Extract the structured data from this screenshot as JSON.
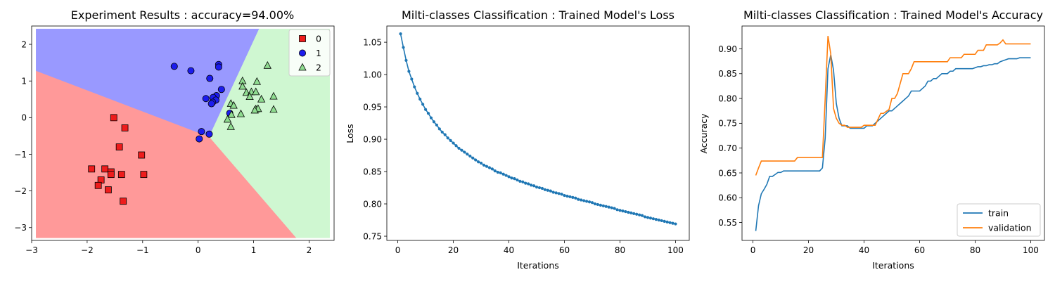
{
  "chart_data": [
    {
      "type": "scatter",
      "title": "Experiment Results : accuracy=94.00%",
      "xlabel": "",
      "ylabel": "",
      "xlim": [
        -3,
        2.45
      ],
      "ylim": [
        -3.35,
        2.5
      ],
      "x_ticks": [
        "−3",
        "−2",
        "−1",
        "0",
        "1",
        "2"
      ],
      "x_tick_values": [
        -3,
        -2,
        -1,
        0,
        1,
        2
      ],
      "y_ticks": [
        "−3",
        "−2",
        "−1",
        "0",
        "1",
        "2"
      ],
      "y_tick_values": [
        -3,
        -2,
        -1,
        0,
        1,
        2
      ],
      "legend_position": "top-right",
      "grid": false,
      "regions": [
        {
          "class": "0",
          "color": "#ff9999",
          "polygon": [
            [
              -2.92,
              -3.28
            ],
            [
              -2.92,
              1.28
            ],
            [
              0.2,
              -0.52
            ],
            [
              1.77,
              -3.28
            ]
          ]
        },
        {
          "class": "1",
          "color": "#9999ff",
          "polygon": [
            [
              -2.92,
              2.42
            ],
            [
              1.1,
              2.42
            ],
            [
              0.2,
              -0.52
            ],
            [
              -2.92,
              1.28
            ]
          ]
        },
        {
          "class": "2",
          "color": "#cff7d1",
          "polygon": [
            [
              1.1,
              2.42
            ],
            [
              2.37,
              2.42
            ],
            [
              2.37,
              -3.28
            ],
            [
              1.77,
              -3.28
            ],
            [
              0.2,
              -0.52
            ]
          ]
        }
      ],
      "series": [
        {
          "name": "0",
          "marker": "square",
          "color": "#ee1c1c",
          "points": [
            [
              -1.52,
              0.0
            ],
            [
              -1.32,
              -0.28
            ],
            [
              -1.42,
              -0.8
            ],
            [
              -1.02,
              -1.02
            ],
            [
              -1.92,
              -1.4
            ],
            [
              -1.68,
              -1.4
            ],
            [
              -1.57,
              -1.48
            ],
            [
              -1.57,
              -1.55
            ],
            [
              -1.38,
              -1.55
            ],
            [
              -0.98,
              -1.55
            ],
            [
              -1.75,
              -1.7
            ],
            [
              -1.8,
              -1.85
            ],
            [
              -1.62,
              -1.97
            ],
            [
              -1.35,
              -2.28
            ]
          ]
        },
        {
          "name": "1",
          "marker": "circle",
          "color": "#1c1cee",
          "points": [
            [
              -0.43,
              1.4
            ],
            [
              -0.13,
              1.28
            ],
            [
              0.37,
              1.45
            ],
            [
              0.37,
              1.38
            ],
            [
              0.21,
              1.07
            ],
            [
              0.42,
              0.77
            ],
            [
              0.33,
              0.6
            ],
            [
              0.27,
              0.55
            ],
            [
              0.14,
              0.52
            ],
            [
              0.32,
              0.48
            ],
            [
              0.26,
              0.42
            ],
            [
              0.24,
              0.38
            ],
            [
              0.57,
              0.12
            ],
            [
              0.06,
              -0.38
            ],
            [
              0.2,
              -0.45
            ],
            [
              0.02,
              -0.58
            ]
          ]
        },
        {
          "name": "2",
          "marker": "triangle",
          "color": "#8fdc90",
          "points": [
            [
              1.25,
              1.42
            ],
            [
              0.8,
              1.0
            ],
            [
              1.06,
              0.98
            ],
            [
              0.8,
              0.85
            ],
            [
              0.87,
              0.68
            ],
            [
              0.96,
              0.7
            ],
            [
              1.04,
              0.7
            ],
            [
              0.93,
              0.57
            ],
            [
              1.36,
              0.58
            ],
            [
              1.14,
              0.5
            ],
            [
              0.59,
              0.38
            ],
            [
              0.64,
              0.33
            ],
            [
              1.04,
              0.23
            ],
            [
              1.08,
              0.24
            ],
            [
              1.02,
              0.2
            ],
            [
              1.36,
              0.22
            ],
            [
              0.77,
              0.1
            ],
            [
              0.6,
              0.08
            ],
            [
              0.53,
              -0.05
            ],
            [
              0.59,
              -0.25
            ]
          ]
        }
      ]
    },
    {
      "type": "line",
      "title": "Milti-classes Classification : Trained Model's Loss",
      "xlabel": "Iterations",
      "ylabel": "Loss",
      "xlim": [
        -3.95,
        104.95
      ],
      "ylim": [
        0.7435,
        1.0751
      ],
      "x_ticks": [
        "0",
        "20",
        "40",
        "60",
        "80",
        "100"
      ],
      "x_tick_values": [
        0,
        20,
        40,
        60,
        80,
        100
      ],
      "y_ticks": [
        "0.75",
        "0.80",
        "0.85",
        "0.90",
        "0.95",
        "1.00",
        "1.05"
      ],
      "y_tick_values": [
        0.75,
        0.8,
        0.85,
        0.9,
        0.95,
        1.0,
        1.05
      ],
      "grid": false,
      "series": [
        {
          "color": "#1f77b4",
          "marker": "circle",
          "x": [
            1,
            2,
            3,
            4,
            5,
            6,
            7,
            8,
            9,
            10,
            11,
            12,
            13,
            14,
            15,
            16,
            17,
            18,
            19,
            20,
            21,
            22,
            23,
            24,
            25,
            26,
            27,
            28,
            29,
            30,
            31,
            32,
            33,
            34,
            35,
            36,
            37,
            38,
            39,
            40,
            41,
            42,
            43,
            44,
            45,
            46,
            47,
            48,
            49,
            50,
            51,
            52,
            53,
            54,
            55,
            56,
            57,
            58,
            59,
            60,
            61,
            62,
            63,
            64,
            65,
            66,
            67,
            68,
            69,
            70,
            71,
            72,
            73,
            74,
            75,
            76,
            77,
            78,
            79,
            80,
            81,
            82,
            83,
            84,
            85,
            86,
            87,
            88,
            89,
            90,
            91,
            92,
            93,
            94,
            95,
            96,
            97,
            98,
            99,
            100
          ],
          "values": [
            1.063,
            1.042,
            1.022,
            1.005,
            0.993,
            0.981,
            0.971,
            0.962,
            0.954,
            0.946,
            0.94,
            0.933,
            0.927,
            0.922,
            0.916,
            0.911,
            0.907,
            0.902,
            0.898,
            0.894,
            0.89,
            0.886,
            0.883,
            0.88,
            0.877,
            0.874,
            0.871,
            0.868,
            0.865,
            0.863,
            0.86,
            0.858,
            0.856,
            0.854,
            0.851,
            0.849,
            0.848,
            0.846,
            0.844,
            0.842,
            0.84,
            0.839,
            0.837,
            0.835,
            0.834,
            0.832,
            0.831,
            0.829,
            0.828,
            0.826,
            0.825,
            0.824,
            0.822,
            0.821,
            0.82,
            0.818,
            0.817,
            0.816,
            0.815,
            0.813,
            0.812,
            0.811,
            0.81,
            0.809,
            0.807,
            0.806,
            0.805,
            0.804,
            0.803,
            0.802,
            0.8,
            0.799,
            0.798,
            0.797,
            0.796,
            0.795,
            0.794,
            0.793,
            0.791,
            0.79,
            0.789,
            0.788,
            0.787,
            0.786,
            0.785,
            0.784,
            0.783,
            0.782,
            0.78,
            0.779,
            0.778,
            0.777,
            0.776,
            0.775,
            0.774,
            0.773,
            0.772,
            0.771,
            0.77,
            0.769
          ]
        }
      ]
    },
    {
      "type": "line",
      "title": "Milti-classes Classification : Trained Model's Accuracy",
      "xlabel": "Iterations",
      "ylabel": "Accuracy",
      "xlim": [
        -3.95,
        104.95
      ],
      "ylim": [
        0.514,
        0.946
      ],
      "x_ticks": [
        "0",
        "20",
        "40",
        "60",
        "80",
        "100"
      ],
      "x_tick_values": [
        0,
        20,
        40,
        60,
        80,
        100
      ],
      "y_ticks": [
        "0.55",
        "0.60",
        "0.65",
        "0.70",
        "0.75",
        "0.80",
        "0.85",
        "0.90"
      ],
      "y_tick_values": [
        0.55,
        0.6,
        0.65,
        0.7,
        0.75,
        0.8,
        0.85,
        0.9
      ],
      "legend_position": "bottom-right",
      "grid": false,
      "series": [
        {
          "name": "train",
          "color": "#1f77b4",
          "x": [
            1,
            2,
            3,
            4,
            5,
            6,
            7,
            8,
            9,
            10,
            11,
            12,
            13,
            14,
            15,
            16,
            17,
            18,
            19,
            20,
            21,
            22,
            23,
            24,
            25,
            26,
            27,
            28,
            29,
            30,
            31,
            32,
            33,
            34,
            35,
            36,
            37,
            38,
            39,
            40,
            41,
            42,
            43,
            44,
            45,
            46,
            47,
            48,
            49,
            50,
            51,
            52,
            53,
            54,
            55,
            56,
            57,
            58,
            59,
            60,
            61,
            62,
            63,
            64,
            65,
            66,
            67,
            68,
            69,
            70,
            71,
            72,
            73,
            74,
            75,
            76,
            77,
            78,
            79,
            80,
            81,
            82,
            83,
            84,
            85,
            86,
            87,
            88,
            89,
            90,
            91,
            92,
            93,
            94,
            95,
            96,
            97,
            98,
            99,
            100
          ],
          "values": [
            0.533,
            0.584,
            0.608,
            0.617,
            0.627,
            0.643,
            0.643,
            0.647,
            0.651,
            0.651,
            0.654,
            0.654,
            0.654,
            0.654,
            0.654,
            0.654,
            0.654,
            0.654,
            0.654,
            0.654,
            0.654,
            0.654,
            0.654,
            0.654,
            0.66,
            0.72,
            0.86,
            0.888,
            0.857,
            0.79,
            0.76,
            0.745,
            0.745,
            0.745,
            0.74,
            0.74,
            0.74,
            0.74,
            0.74,
            0.74,
            0.745,
            0.745,
            0.745,
            0.75,
            0.755,
            0.76,
            0.765,
            0.77,
            0.775,
            0.775,
            0.78,
            0.785,
            0.79,
            0.795,
            0.8,
            0.805,
            0.815,
            0.815,
            0.815,
            0.815,
            0.82,
            0.825,
            0.835,
            0.835,
            0.84,
            0.84,
            0.845,
            0.85,
            0.85,
            0.85,
            0.855,
            0.855,
            0.86,
            0.86,
            0.86,
            0.86,
            0.86,
            0.86,
            0.86,
            0.862,
            0.864,
            0.864,
            0.866,
            0.866,
            0.868,
            0.868,
            0.87,
            0.87,
            0.874,
            0.876,
            0.878,
            0.88,
            0.88,
            0.88,
            0.88,
            0.882,
            0.882,
            0.882,
            0.882,
            0.882
          ]
        },
        {
          "name": "validation",
          "color": "#ff7f0e",
          "x": [
            1,
            2,
            3,
            4,
            5,
            6,
            7,
            8,
            9,
            10,
            11,
            12,
            13,
            14,
            15,
            16,
            17,
            18,
            19,
            20,
            21,
            22,
            23,
            24,
            25,
            26,
            27,
            28,
            29,
            30,
            31,
            32,
            33,
            34,
            35,
            36,
            37,
            38,
            39,
            40,
            41,
            42,
            43,
            44,
            45,
            46,
            47,
            48,
            49,
            50,
            51,
            52,
            53,
            54,
            55,
            56,
            57,
            58,
            59,
            60,
            61,
            62,
            63,
            64,
            65,
            66,
            67,
            68,
            69,
            70,
            71,
            72,
            73,
            74,
            75,
            76,
            77,
            78,
            79,
            80,
            81,
            82,
            83,
            84,
            85,
            86,
            87,
            88,
            89,
            90,
            91,
            92,
            93,
            94,
            95,
            96,
            97,
            98,
            99,
            100
          ],
          "values": [
            0.645,
            0.66,
            0.674,
            0.674,
            0.674,
            0.674,
            0.674,
            0.674,
            0.674,
            0.674,
            0.674,
            0.674,
            0.674,
            0.674,
            0.674,
            0.681,
            0.681,
            0.681,
            0.681,
            0.681,
            0.681,
            0.681,
            0.681,
            0.681,
            0.681,
            0.8,
            0.926,
            0.89,
            0.78,
            0.76,
            0.75,
            0.746,
            0.746,
            0.742,
            0.742,
            0.742,
            0.742,
            0.742,
            0.742,
            0.746,
            0.746,
            0.746,
            0.746,
            0.746,
            0.758,
            0.77,
            0.77,
            0.774,
            0.778,
            0.8,
            0.8,
            0.81,
            0.83,
            0.85,
            0.85,
            0.85,
            0.86,
            0.874,
            0.874,
            0.874,
            0.874,
            0.874,
            0.874,
            0.874,
            0.874,
            0.874,
            0.874,
            0.874,
            0.874,
            0.874,
            0.882,
            0.882,
            0.882,
            0.882,
            0.882,
            0.889,
            0.889,
            0.889,
            0.889,
            0.889,
            0.897,
            0.897,
            0.897,
            0.908,
            0.908,
            0.908,
            0.908,
            0.908,
            0.912,
            0.918,
            0.91,
            0.91,
            0.91,
            0.91,
            0.91,
            0.91,
            0.91,
            0.91,
            0.91,
            0.91
          ]
        }
      ]
    }
  ]
}
